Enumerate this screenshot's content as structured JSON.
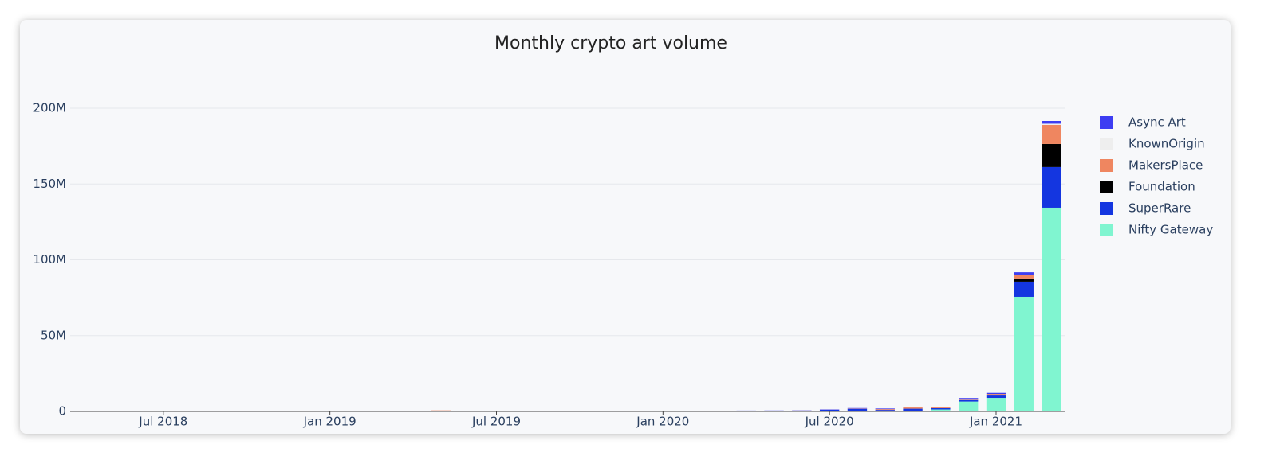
{
  "chart_data": {
    "type": "stacked-bar",
    "title": "Monthly crypto art volume",
    "x": [
      "2018-04",
      "2018-05",
      "2018-06",
      "2018-07",
      "2018-08",
      "2018-09",
      "2018-10",
      "2018-11",
      "2018-12",
      "2019-01",
      "2019-02",
      "2019-03",
      "2019-04",
      "2019-05",
      "2019-06",
      "2019-07",
      "2019-08",
      "2019-09",
      "2019-10",
      "2019-11",
      "2019-12",
      "2020-01",
      "2020-02",
      "2020-03",
      "2020-04",
      "2020-05",
      "2020-06",
      "2020-07",
      "2020-08",
      "2020-09",
      "2020-10",
      "2020-11",
      "2020-12",
      "2021-01",
      "2021-02",
      "2021-03"
    ],
    "xticks": [
      {
        "value": "2018-07",
        "label": "Jul 2018"
      },
      {
        "value": "2019-01",
        "label": "Jan 2019"
      },
      {
        "value": "2019-07",
        "label": "Jul 2019"
      },
      {
        "value": "2020-01",
        "label": "Jan 2020"
      },
      {
        "value": "2020-07",
        "label": "Jul 2020"
      },
      {
        "value": "2021-01",
        "label": "Jan 2021"
      }
    ],
    "ylim": [
      0,
      200000000
    ],
    "yticks": [
      0,
      {
        "value": 50000000,
        "label": "50M"
      },
      {
        "value": 100000000,
        "label": "100M"
      },
      {
        "value": 150000000,
        "label": "150M"
      },
      {
        "value": 200000000,
        "label": "200M"
      }
    ],
    "grid": true,
    "legend": "right",
    "series": [
      {
        "name": "Async Art",
        "color": "#3d3df2",
        "values": [
          0,
          0,
          0,
          0,
          0,
          0,
          0,
          0,
          0,
          0,
          0,
          0,
          0,
          0,
          0,
          0,
          0,
          0,
          0,
          0,
          0,
          0,
          100000,
          100000,
          100000,
          100000,
          100000,
          200000,
          300000,
          400000,
          400000,
          300000,
          500000,
          700000,
          1500000,
          1800000
        ]
      },
      {
        "name": "KnownOrigin",
        "color": "#eeeeee",
        "values": [
          20000,
          20000,
          20000,
          20000,
          20000,
          20000,
          20000,
          20000,
          20000,
          20000,
          20000,
          20000,
          20000,
          20000,
          20000,
          20000,
          20000,
          20000,
          20000,
          20000,
          20000,
          20000,
          20000,
          20000,
          20000,
          20000,
          20000,
          20000,
          20000,
          20000,
          20000,
          20000,
          20000,
          20000,
          500000,
          800000
        ]
      },
      {
        "name": "MakersPlace",
        "color": "#ef8660",
        "values": [
          0,
          0,
          0,
          50000,
          50000,
          50000,
          50000,
          50000,
          50000,
          50000,
          50000,
          50000,
          50000,
          400000,
          50000,
          50000,
          50000,
          50000,
          50000,
          50000,
          50000,
          50000,
          50000,
          50000,
          50000,
          50000,
          50000,
          50000,
          200000,
          500000,
          800000,
          500000,
          300000,
          500000,
          2100000,
          12600000
        ]
      },
      {
        "name": "Foundation",
        "color": "#000000",
        "values": [
          0,
          0,
          0,
          0,
          0,
          0,
          0,
          0,
          0,
          0,
          0,
          0,
          0,
          0,
          0,
          0,
          0,
          0,
          0,
          0,
          0,
          0,
          0,
          0,
          0,
          0,
          0,
          0,
          0,
          0,
          0,
          0,
          0,
          0,
          2100000,
          15200000
        ]
      },
      {
        "name": "SuperRare",
        "color": "#1436e0",
        "values": [
          200000,
          300000,
          100000,
          100000,
          200000,
          100000,
          200000,
          200000,
          300000,
          200000,
          100000,
          200000,
          300000,
          300000,
          300000,
          400000,
          300000,
          100000,
          100000,
          100000,
          100000,
          100000,
          200000,
          200000,
          300000,
          300000,
          400000,
          1000000,
          1500000,
          700000,
          1300000,
          800000,
          1500000,
          2100000,
          10000000,
          26800000
        ]
      },
      {
        "name": "Nifty Gateway",
        "color": "#80f5d0",
        "values": [
          0,
          0,
          0,
          0,
          0,
          0,
          0,
          0,
          0,
          0,
          0,
          0,
          0,
          0,
          0,
          0,
          0,
          0,
          0,
          0,
          0,
          0,
          50000,
          100000,
          100000,
          150000,
          200000,
          100000,
          200000,
          300000,
          500000,
          1300000,
          6500000,
          8900000,
          75600000,
          134400000
        ]
      }
    ]
  }
}
